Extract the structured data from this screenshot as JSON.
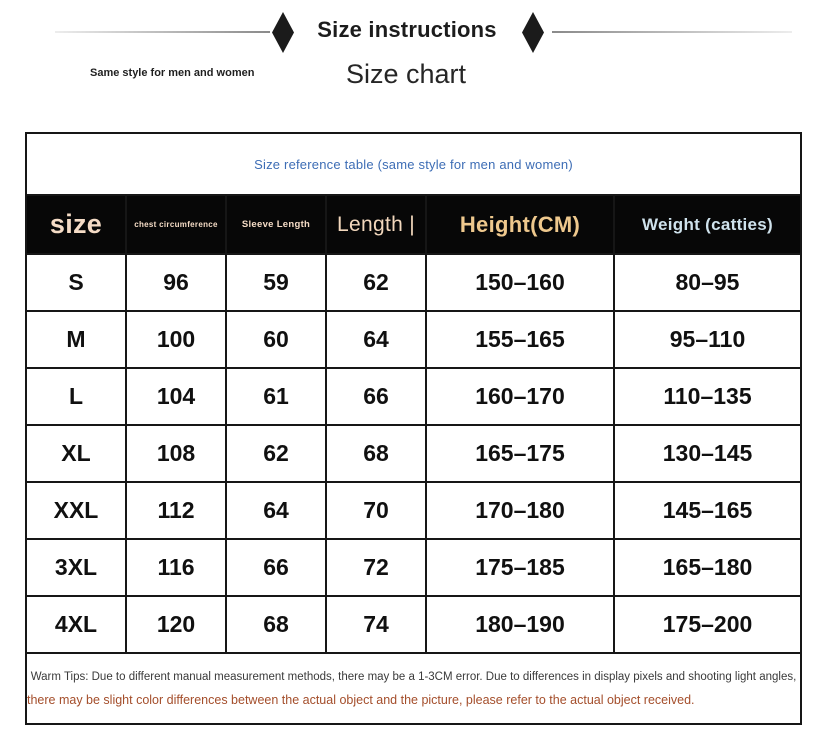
{
  "header": {
    "title": "Size instructions",
    "tagline": "Same style for men and women",
    "subtitle": "Size chart"
  },
  "table": {
    "caption": "Size reference table (same style for men and women)",
    "caption_color": "#3d6db5",
    "header_bg": "#070707",
    "border_color": "#161616",
    "columns": [
      {
        "key": "size",
        "label": "size",
        "color": "#f5dcc6"
      },
      {
        "key": "chest",
        "label": "chest circumference",
        "color": "#f5dcc6"
      },
      {
        "key": "sleeve",
        "label": "Sleeve Length",
        "color": "#f5dcc6"
      },
      {
        "key": "length",
        "label": "Length |",
        "color": "#f3d8bd"
      },
      {
        "key": "height",
        "label": "Height(CM)",
        "color": "#eec88d"
      },
      {
        "key": "weight",
        "label": "Weight (catties)",
        "color": "#cfe2ec"
      }
    ],
    "rows": [
      [
        "S",
        "96",
        "59",
        "62",
        "150–160",
        "80–95"
      ],
      [
        "M",
        "100",
        "60",
        "64",
        "155–165",
        "95–110"
      ],
      [
        "L",
        "104",
        "61",
        "66",
        "160–170",
        "110–135"
      ],
      [
        "XL",
        "108",
        "62",
        "68",
        "165–175",
        "130–145"
      ],
      [
        "XXL",
        "112",
        "64",
        "70",
        "170–180",
        "145–165"
      ],
      [
        "3XL",
        "116",
        "66",
        "72",
        "175–185",
        "165–180"
      ],
      [
        "4XL",
        "120",
        "68",
        "74",
        "180–190",
        "175–200"
      ]
    ]
  },
  "footer": {
    "line1": "Warm Tips: Due to different manual measurement methods, there may be a 1-3CM error. Due to differences in display pixels and shooting light angles,",
    "line2": "there may be slight color differences between the actual object and the picture, please refer to the actual object received.",
    "line1_color": "#3a3a3a",
    "line2_color": "#a44e2b"
  }
}
